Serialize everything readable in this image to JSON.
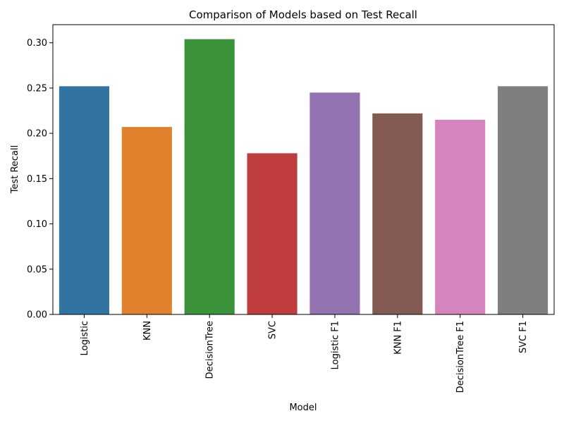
{
  "chart_data": {
    "type": "bar",
    "title": "Comparison of Models based on Test Recall",
    "xlabel": "Model",
    "ylabel": "Test Recall",
    "categories": [
      "Logistic",
      "KNN",
      "DecisionTree",
      "SVC",
      "Logistic F1",
      "KNN F1",
      "DecisionTree F1",
      "SVC F1"
    ],
    "values": [
      0.252,
      0.207,
      0.304,
      0.178,
      0.245,
      0.222,
      0.215,
      0.252
    ],
    "colors": [
      "#3274a1",
      "#e1812c",
      "#3a923a",
      "#c03d3e",
      "#9372b2",
      "#845b53",
      "#d684bd",
      "#7f7f7f"
    ],
    "ylim": [
      0,
      0.32
    ],
    "yticks": [
      0.0,
      0.05,
      0.1,
      0.15,
      0.2,
      0.25,
      0.3
    ],
    "ytick_labels": [
      "0.00",
      "0.05",
      "0.10",
      "0.15",
      "0.20",
      "0.25",
      "0.30"
    ],
    "grid": false,
    "legend": false
  }
}
